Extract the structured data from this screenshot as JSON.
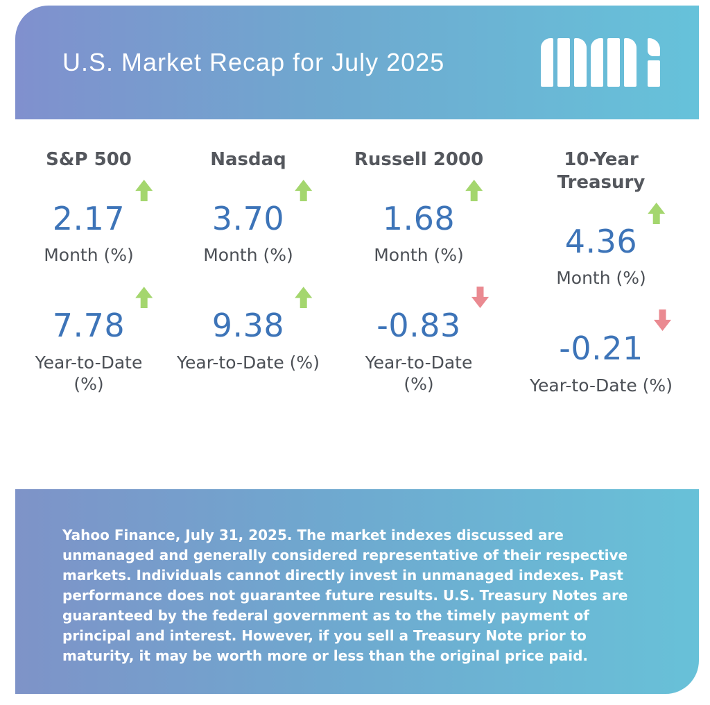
{
  "header": {
    "title": "U.S. Market Recap for July 2025",
    "logo": "mmi-logo"
  },
  "colors": {
    "gradient_left": "#7E93C8",
    "gradient_right": "#68C1D8",
    "value_blue": "#3D74B8",
    "up_green": "#A4D66E",
    "down_red": "#EA8A91",
    "label_gray": "#4C5056",
    "heading_gray": "#54575D"
  },
  "columns": [
    {
      "name": "S&P 500",
      "month": {
        "value": "2.17",
        "label": "Month (%)",
        "direction": "up"
      },
      "ytd": {
        "value": "7.78",
        "label": "Year-to-Date\n(%)",
        "direction": "up"
      }
    },
    {
      "name": "Nasdaq",
      "month": {
        "value": "3.70",
        "label": "Month (%)",
        "direction": "up"
      },
      "ytd": {
        "value": "9.38",
        "label": "Year-to-Date (%)",
        "direction": "up"
      }
    },
    {
      "name": "Russell 2000",
      "month": {
        "value": "1.68",
        "label": "Month (%)",
        "direction": "up"
      },
      "ytd": {
        "value": "-0.83",
        "label": "Year-to-Date\n(%)",
        "direction": "down"
      }
    },
    {
      "name": "10-Year\nTreasury",
      "month": {
        "value": "4.36",
        "label": "Month (%)",
        "direction": "up"
      },
      "ytd": {
        "value": "-0.21",
        "label": "Year-to-Date (%)",
        "direction": "down"
      }
    }
  ],
  "footer": {
    "disclaimer": "Yahoo Finance, July 31, 2025. The market indexes discussed are unmanaged and generally considered representative of their respective markets. Individuals cannot directly invest in unmanaged indexes. Past performance does not guarantee future results. U.S. Treasury Notes are guaranteed by the federal government as to the timely payment of principal and interest. However, if you sell a Treasury Note prior to maturity, it may be worth more or less than the original price paid."
  },
  "chart_data": {
    "type": "table",
    "title": "U.S. Market Recap for July 2025",
    "categories": [
      "S&P 500",
      "Nasdaq",
      "Russell 2000",
      "10-Year Treasury"
    ],
    "series": [
      {
        "name": "Month (%)",
        "values": [
          2.17,
          3.7,
          1.68,
          4.36
        ]
      },
      {
        "name": "Year-to-Date (%)",
        "values": [
          7.78,
          9.38,
          -0.83,
          -0.21
        ]
      }
    ],
    "annotations": "green up-arrow = positive period return, red down-arrow = negative period return",
    "source": "Yahoo Finance, July 31, 2025"
  }
}
